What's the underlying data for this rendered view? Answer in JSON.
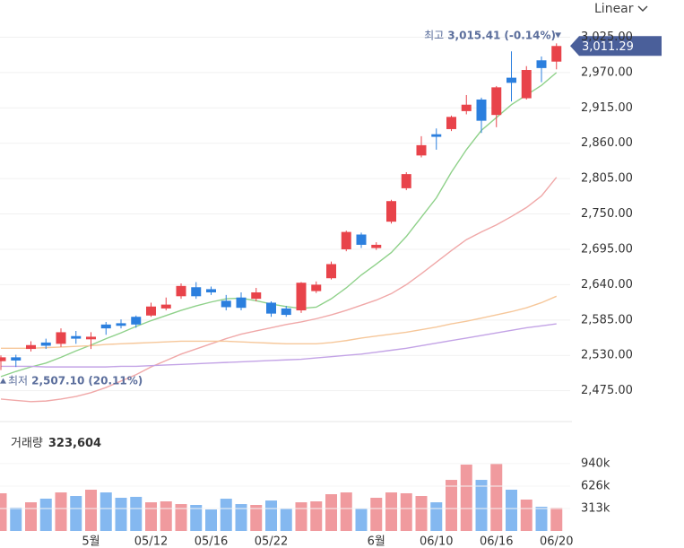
{
  "chart_data": {
    "type": "candlestick",
    "scale_mode": "Linear",
    "categories": [
      null,
      null,
      null,
      null,
      null,
      null,
      "5월",
      null,
      null,
      null,
      "05/12",
      null,
      null,
      null,
      "05/16",
      null,
      null,
      null,
      "05/22",
      null,
      null,
      null,
      null,
      null,
      null,
      "6월",
      null,
      null,
      null,
      "06/10",
      null,
      null,
      null,
      "06/16",
      null,
      null,
      null,
      "06/20"
    ],
    "open": [
      2521,
      2527,
      2540,
      2550,
      2548,
      2560,
      2555,
      2578,
      2580,
      2590,
      2592,
      2603,
      2622,
      2636,
      2633,
      2615,
      2620,
      2618,
      2612,
      2603,
      2600,
      2630,
      2650,
      2695,
      2718,
      2697,
      2738,
      2790,
      2841,
      2874,
      2882,
      2910,
      2928,
      2904,
      2962,
      2930,
      2989,
      2987
    ],
    "high": [
      2530,
      2531,
      2552,
      2556,
      2572,
      2568,
      2566,
      2582,
      2586,
      2592,
      2612,
      2620,
      2642,
      2644,
      2637,
      2624,
      2628,
      2635,
      2614,
      2607,
      2644,
      2645,
      2676,
      2724,
      2721,
      2706,
      2772,
      2815,
      2871,
      2883,
      2903,
      2935,
      2931,
      2949,
      3003,
      2980,
      2995,
      3015.41
    ],
    "low": [
      2507.1,
      2512,
      2536,
      2540,
      2543,
      2548,
      2540,
      2562,
      2572,
      2573,
      2590,
      2600,
      2618,
      2618,
      2624,
      2600,
      2600,
      2614,
      2590,
      2590,
      2596,
      2627,
      2648,
      2692,
      2697,
      2694,
      2735,
      2787,
      2838,
      2850,
      2879,
      2905,
      2876,
      2885,
      2925,
      2928,
      2955,
      2975
    ],
    "close": [
      2527,
      2522,
      2546,
      2545,
      2566,
      2556,
      2559,
      2572,
      2576,
      2578,
      2606,
      2609,
      2638,
      2622,
      2628,
      2605,
      2604,
      2628,
      2595,
      2593,
      2643,
      2640,
      2672,
      2722,
      2702,
      2702,
      2770,
      2812,
      2857,
      2870,
      2901,
      2920,
      2895,
      2947,
      2954,
      2974,
      2977,
      3011.29
    ],
    "up_color": "#e8434a",
    "down_color": "#2b7fde",
    "moving_averages": [
      {
        "color": "#8fd18a",
        "values": [
          2497,
          2505,
          2512,
          2518,
          2527,
          2537,
          2546,
          2556,
          2565,
          2575,
          2584,
          2592,
          2600,
          2607,
          2613,
          2618,
          2619,
          2615,
          2610,
          2606,
          2603,
          2605,
          2618,
          2635,
          2655,
          2672,
          2690,
          2715,
          2745,
          2775,
          2815,
          2850,
          2880,
          2900,
          2920,
          2935,
          2950,
          2970
        ]
      },
      {
        "color": "#f0a8a8",
        "values": [
          2462,
          2460,
          2458,
          2459,
          2462,
          2466,
          2472,
          2480,
          2490,
          2500,
          2512,
          2522,
          2532,
          2540,
          2548,
          2556,
          2563,
          2568,
          2573,
          2578,
          2582,
          2587,
          2593,
          2600,
          2608,
          2616,
          2626,
          2640,
          2657,
          2675,
          2693,
          2710,
          2722,
          2733,
          2746,
          2760,
          2778,
          2807
        ]
      },
      {
        "color": "#f6c79a",
        "values": [
          2541,
          2541,
          2541,
          2542,
          2543,
          2544,
          2545,
          2547,
          2548,
          2549,
          2550,
          2551,
          2552,
          2552,
          2552,
          2552,
          2551,
          2550,
          2549,
          2548,
          2548,
          2548,
          2550,
          2553,
          2557,
          2560,
          2563,
          2566,
          2570,
          2574,
          2579,
          2583,
          2588,
          2593,
          2598,
          2604,
          2612,
          2622
        ]
      },
      {
        "color": "#c3a3e6",
        "values": [
          2513,
          2513,
          2513,
          2512,
          2512,
          2512,
          2512,
          2512,
          2513,
          2513,
          2514,
          2515,
          2516,
          2517,
          2518,
          2519,
          2520,
          2521,
          2522,
          2523,
          2524,
          2526,
          2528,
          2530,
          2532,
          2535,
          2538,
          2541,
          2545,
          2549,
          2553,
          2557,
          2561,
          2565,
          2569,
          2573,
          2576,
          2579
        ]
      }
    ],
    "ylim": [
      2448,
      3041
    ],
    "yticks": [
      {
        "value": 2475,
        "label": "2,475.00"
      },
      {
        "value": 2530,
        "label": "2,530.00"
      },
      {
        "value": 2585,
        "label": "2,585.00"
      },
      {
        "value": 2640,
        "label": "2,640.00"
      },
      {
        "value": 2695,
        "label": "2,695.00"
      },
      {
        "value": 2750,
        "label": "2,750.00"
      },
      {
        "value": 2805,
        "label": "2,805.00"
      },
      {
        "value": 2860,
        "label": "2,860.00"
      },
      {
        "value": 2915,
        "label": "2,915.00"
      },
      {
        "value": 2970,
        "label": "2,970.00"
      },
      {
        "value": 3025,
        "label": "3,025.00"
      }
    ],
    "grid": true,
    "current_price": {
      "value": 3011.29,
      "label": "3,011.29"
    },
    "high_marker": {
      "prefix": "최고",
      "value": 3015.41,
      "label": "3,015.41",
      "change": "(-0.14%)"
    },
    "low_marker": {
      "prefix": "최저",
      "value": 2507.1,
      "label": "2,507.10",
      "change": "(20.11%)"
    },
    "volume": {
      "title": "거래량",
      "current": {
        "value": 323604,
        "label": "323,604"
      },
      "values": [
        526000,
        326000,
        400000,
        451000,
        538000,
        488000,
        576000,
        538000,
        463000,
        476000,
        400000,
        413000,
        375000,
        363000,
        300000,
        450000,
        375000,
        363000,
        425000,
        313000,
        400000,
        413000,
        513000,
        538000,
        313000,
        463000,
        538000,
        526000,
        488000,
        400000,
        713000,
        926000,
        713000,
        938000,
        576000,
        438000,
        338000,
        323604
      ],
      "ylim": [
        0,
        1427000
      ],
      "yticks": [
        {
          "value": 313000,
          "label": "313k"
        },
        {
          "value": 626000,
          "label": "626k"
        },
        {
          "value": 940000,
          "label": "940k"
        }
      ]
    }
  }
}
